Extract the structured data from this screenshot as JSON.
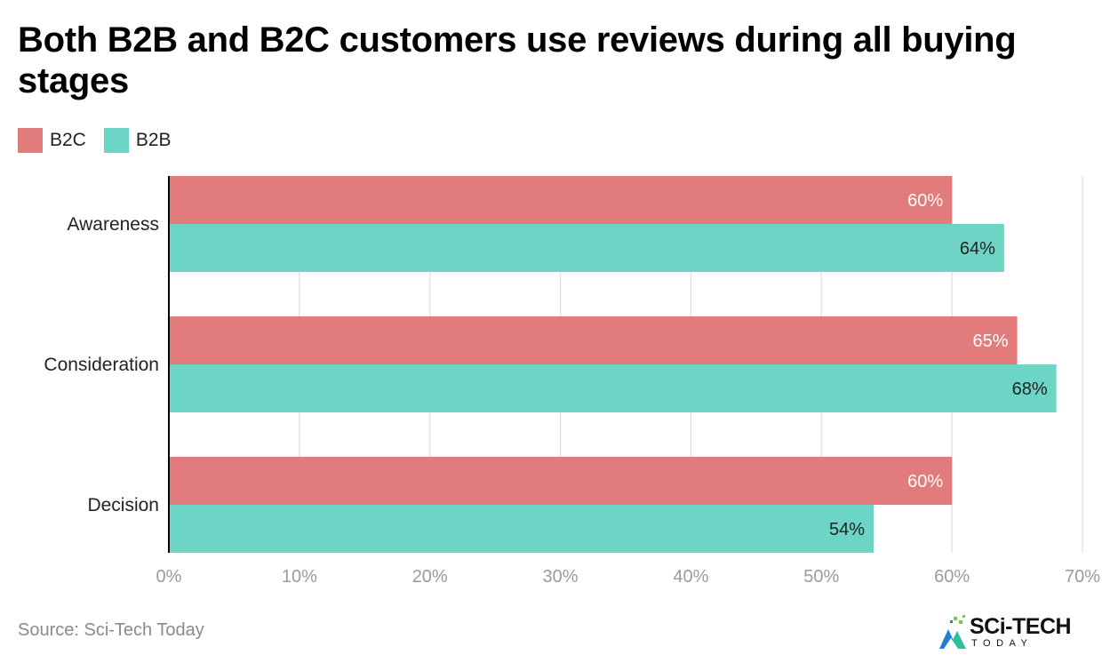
{
  "title": "Both B2B and B2C customers use reviews during all buying stages",
  "source": "Source: Sci-Tech Today",
  "logo": {
    "main": "SCi-TECH",
    "sub": "TODAY"
  },
  "colors": {
    "B2C": "#e27b7b",
    "B2B": "#6cd5c6",
    "grid": "#e3e3e3",
    "axis": "#000000",
    "tick": "#9b9b9b"
  },
  "chart_data": {
    "type": "bar",
    "orientation": "horizontal",
    "categories": [
      "Awareness",
      "Consideration",
      "Decision"
    ],
    "series": [
      {
        "name": "B2C",
        "values": [
          60,
          65,
          60
        ],
        "labels": [
          "60%",
          "65%",
          "60%"
        ]
      },
      {
        "name": "B2B",
        "values": [
          64,
          68,
          54
        ],
        "labels": [
          "64%",
          "68%",
          "54%"
        ]
      }
    ],
    "xlim": [
      0,
      70
    ],
    "xticks": [
      0,
      10,
      20,
      30,
      40,
      50,
      60,
      70
    ],
    "xtick_labels": [
      "0%",
      "10%",
      "20%",
      "30%",
      "40%",
      "50%",
      "60%",
      "70%"
    ],
    "grid": true,
    "legend_position": "top-left"
  }
}
